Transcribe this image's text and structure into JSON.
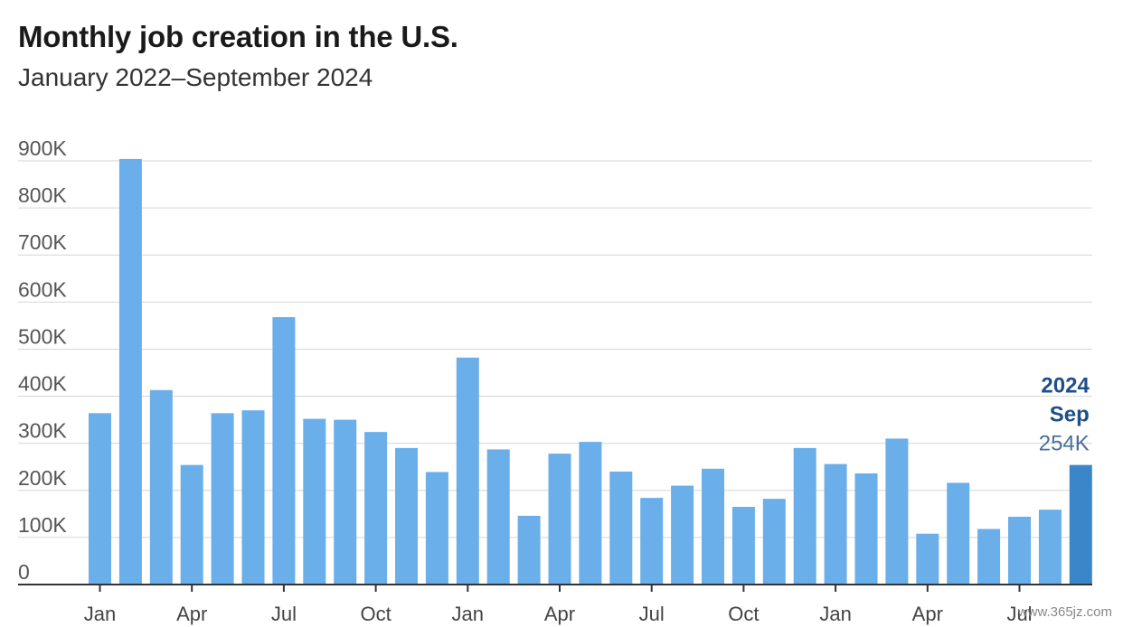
{
  "chart_data": {
    "type": "bar",
    "title": "Monthly job creation in the U.S.",
    "subtitle": "January 2022–September 2024",
    "xlabel": "",
    "ylabel": "",
    "ylim": [
      0,
      900000
    ],
    "yticks": [
      {
        "value": 0,
        "label": "0"
      },
      {
        "value": 100000,
        "label": "100K"
      },
      {
        "value": 200000,
        "label": "200K"
      },
      {
        "value": 300000,
        "label": "300K"
      },
      {
        "value": 400000,
        "label": "400K"
      },
      {
        "value": 500000,
        "label": "500K"
      },
      {
        "value": 600000,
        "label": "600K"
      },
      {
        "value": 700000,
        "label": "700K"
      },
      {
        "value": 800000,
        "label": "800K"
      },
      {
        "value": 900000,
        "label": "900K"
      }
    ],
    "xticks": [
      {
        "index": 0,
        "label": "Jan"
      },
      {
        "index": 3,
        "label": "Apr"
      },
      {
        "index": 6,
        "label": "Jul"
      },
      {
        "index": 9,
        "label": "Oct"
      },
      {
        "index": 12,
        "label": "Jan"
      },
      {
        "index": 15,
        "label": "Apr"
      },
      {
        "index": 18,
        "label": "Jul"
      },
      {
        "index": 21,
        "label": "Oct"
      },
      {
        "index": 24,
        "label": "Jan"
      },
      {
        "index": 27,
        "label": "Apr"
      },
      {
        "index": 30,
        "label": "Jul"
      }
    ],
    "categories": [
      "Jan 2022",
      "Feb 2022",
      "Mar 2022",
      "Apr 2022",
      "May 2022",
      "Jun 2022",
      "Jul 2022",
      "Aug 2022",
      "Sep 2022",
      "Oct 2022",
      "Nov 2022",
      "Dec 2022",
      "Jan 2023",
      "Feb 2023",
      "Mar 2023",
      "Apr 2023",
      "May 2023",
      "Jun 2023",
      "Jul 2023",
      "Aug 2023",
      "Sep 2023",
      "Oct 2023",
      "Nov 2023",
      "Dec 2023",
      "Jan 2024",
      "Feb 2024",
      "Mar 2024",
      "Apr 2024",
      "May 2024",
      "Jun 2024",
      "Jul 2024",
      "Aug 2024",
      "Sep 2024"
    ],
    "values": [
      364000,
      904000,
      413000,
      254000,
      364000,
      370000,
      568000,
      352000,
      350000,
      324000,
      290000,
      239000,
      482000,
      287000,
      146000,
      278000,
      303000,
      240000,
      184000,
      210000,
      246000,
      165000,
      182000,
      290000,
      256000,
      236000,
      310000,
      108000,
      216000,
      118000,
      144000,
      159000,
      254000
    ],
    "grid": true,
    "colors": {
      "bar": "#6aaeea",
      "highlight": "#3a86c8"
    },
    "highlight_index": 32,
    "annotation": {
      "year": "2024",
      "month": "Sep",
      "value": "254K"
    }
  },
  "watermark": "www.365jz.com"
}
